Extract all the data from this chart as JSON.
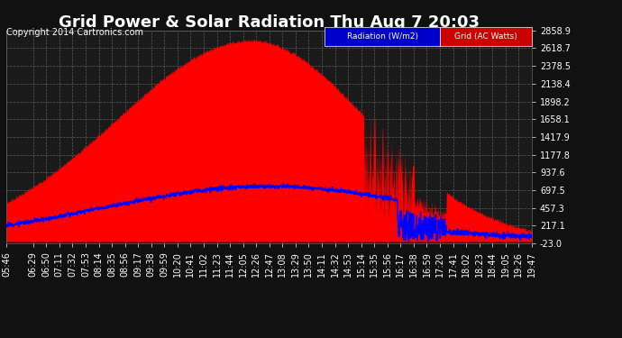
{
  "title": "Grid Power & Solar Radiation Thu Aug 7 20:03",
  "copyright": "Copyright 2014 Cartronics.com",
  "background_color": "#111111",
  "plot_bg_color": "#1a1a1a",
  "grid_color": "#888888",
  "yticks": [
    2858.9,
    2618.7,
    2378.5,
    2138.4,
    1898.2,
    1658.1,
    1417.9,
    1177.8,
    937.6,
    697.5,
    457.3,
    217.1,
    -23.0
  ],
  "ymin": -23.0,
  "ymax": 2858.9,
  "radiation_color": "#ff0000",
  "grid_line_color": "#0000ff",
  "x_labels": [
    "05:46",
    "06:29",
    "06:50",
    "07:11",
    "07:32",
    "07:53",
    "08:14",
    "08:35",
    "08:56",
    "09:17",
    "09:38",
    "09:59",
    "10:20",
    "10:41",
    "11:02",
    "11:23",
    "11:44",
    "12:05",
    "12:26",
    "12:47",
    "13:08",
    "13:29",
    "13:50",
    "14:11",
    "14:32",
    "14:53",
    "15:14",
    "15:35",
    "15:56",
    "16:17",
    "16:38",
    "16:59",
    "17:20",
    "17:41",
    "18:02",
    "18:23",
    "18:44",
    "19:05",
    "19:26",
    "19:47"
  ],
  "title_fontsize": 13,
  "copyright_fontsize": 7,
  "tick_fontsize": 7
}
